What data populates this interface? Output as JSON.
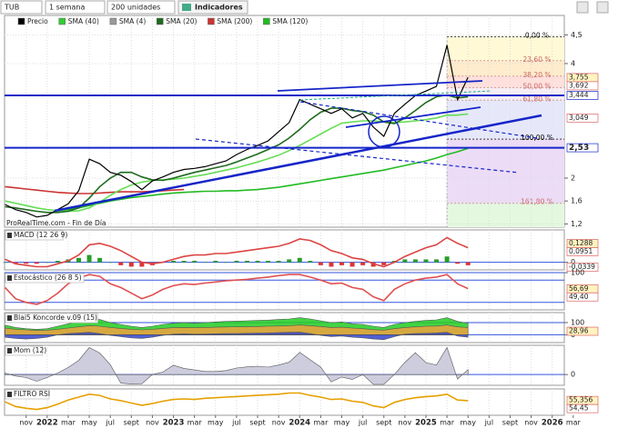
{
  "toolbar": {
    "symbol": "TUB",
    "period": "1 semana",
    "units": "200 unidades",
    "indicators": "Indicadores"
  },
  "chart_data": [
    {
      "type": "line",
      "annotation": "ProRealTime.com - Fin de Día",
      "legend": [
        {
          "name": "Precio",
          "color": "#000000"
        },
        {
          "name": "SMA (40)",
          "color": "#33cc33"
        },
        {
          "name": "SMA (4)",
          "color": "#999999"
        },
        {
          "name": "SMA (20)",
          "color": "#1f6b1f"
        },
        {
          "name": "SMA (200)",
          "color": "#cc3333"
        },
        {
          "name": "SMA (120)",
          "color": "#22bb22"
        }
      ],
      "x": [
        -4,
        -3,
        -2,
        -1,
        0,
        1,
        2,
        3,
        4,
        5,
        6,
        7,
        8,
        9,
        10,
        11,
        12,
        13,
        14,
        15,
        16,
        17,
        18,
        19,
        20,
        21,
        22,
        23,
        24,
        25,
        26,
        27,
        28,
        29,
        30,
        31,
        32,
        33,
        34,
        35,
        36,
        37,
        38,
        39,
        40
      ],
      "xlim": [
        -4.05,
        49.15
      ],
      "xticks": [
        {
          "value": -2,
          "label": "nov"
        },
        {
          "value": 0,
          "label": "2022"
        },
        {
          "value": 2,
          "label": "mar"
        },
        {
          "value": 4,
          "label": "may"
        },
        {
          "value": 6,
          "label": "jul"
        },
        {
          "value": 8,
          "label": "sept"
        },
        {
          "value": 10,
          "label": "nov"
        },
        {
          "value": 12,
          "label": "2023"
        },
        {
          "value": 14,
          "label": "mar"
        },
        {
          "value": 16,
          "label": "may"
        },
        {
          "value": 18,
          "label": "jul"
        },
        {
          "value": 20,
          "label": "sept"
        },
        {
          "value": 22,
          "label": "nov"
        },
        {
          "value": 24,
          "label": "2024"
        },
        {
          "value": 26,
          "label": "mar"
        },
        {
          "value": 28,
          "label": "may"
        },
        {
          "value": 30,
          "label": "jul"
        },
        {
          "value": 32,
          "label": "sept"
        },
        {
          "value": 34,
          "label": "nov"
        },
        {
          "value": 36,
          "label": "2025"
        },
        {
          "value": 38,
          "label": "mar"
        },
        {
          "value": 40,
          "label": "may"
        },
        {
          "value": 42,
          "label": "jul"
        },
        {
          "value": 44,
          "label": "sept"
        },
        {
          "value": 46,
          "label": "nov"
        },
        {
          "value": 48,
          "label": "2026"
        },
        {
          "value": 50,
          "label": "mar"
        }
      ],
      "ylim": [
        1.143,
        4.84
      ],
      "yticks": [
        {
          "value": 4.5,
          "label": "4,5"
        },
        4,
        2,
        {
          "value": 1.6,
          "label": "1,6"
        },
        {
          "value": 1.2,
          "label": "1,2"
        }
      ],
      "grid": true,
      "fibonacci": {
        "from_x": 38,
        "levels": [
          {
            "label": "0,00 %",
            "value": 4.47,
            "color": "#fff9d6"
          },
          {
            "label": "23,60 %",
            "value": 4.05,
            "color": "#ffeccc"
          },
          {
            "label": "38,20 %",
            "value": 3.78,
            "color": "#ffe0dc"
          },
          {
            "label": "50,00 %",
            "value": 3.58,
            "color": "#f6eef4"
          },
          {
            "label": "61,80 %",
            "value": 3.36,
            "color": "#e6e8fa"
          },
          {
            "label": "100,00 %",
            "value": 2.68,
            "color": "#ecdcf6"
          },
          {
            "label": "161,80 %",
            "value": 1.56,
            "color": "#e4f8e0"
          }
        ]
      },
      "levels": [
        {
          "value": 3.755,
          "label": "3,755"
        },
        {
          "value": 3.692,
          "label": "3,692"
        },
        {
          "value": 3.444,
          "label": "3,444",
          "color": "#1525c8"
        },
        {
          "value": 3.049,
          "label": "3,049"
        },
        {
          "value": 2.53,
          "label": "2,53",
          "color": "#1525c8"
        }
      ],
      "series": [
        {
          "color": "#cc3333",
          "values": [
            1.85,
            1.83,
            1.81,
            1.79,
            1.77,
            1.75,
            1.74,
            1.73,
            1.73,
            1.74,
            1.75,
            1.76,
            1.76,
            1.76,
            1.77,
            1.78,
            1.79,
            1.8,
            null,
            null,
            null,
            null,
            null,
            null,
            null,
            null,
            null,
            null,
            null,
            null,
            null,
            null,
            null,
            null,
            null,
            null,
            null,
            null,
            null,
            null,
            null,
            null,
            null,
            null,
            null
          ]
        },
        {
          "color": "#22bb22",
          "values": [
            null,
            null,
            null,
            null,
            null,
            1.42,
            1.45,
            1.48,
            1.52,
            1.56,
            1.6,
            1.63,
            1.66,
            1.68,
            1.7,
            1.72,
            1.74,
            1.75,
            1.76,
            1.77,
            1.77,
            1.78,
            1.78,
            1.79,
            1.8,
            1.82,
            1.84,
            1.87,
            1.9,
            1.93,
            1.96,
            1.99,
            2.02,
            2.05,
            2.08,
            2.11,
            2.14,
            2.18,
            2.22,
            2.26,
            2.3,
            2.35,
            2.41,
            2.46,
            2.52
          ]
        },
        {
          "color": "#66dd55",
          "values": [
            1.6,
            1.56,
            1.52,
            1.48,
            1.45,
            1.43,
            1.42,
            1.43,
            1.48,
            1.58,
            1.7,
            1.8,
            1.88,
            1.93,
            1.96,
            1.97,
            1.98,
            2.0,
            2.03,
            2.06,
            2.1,
            2.14,
            2.18,
            2.23,
            2.28,
            2.34,
            2.4,
            2.48,
            2.57,
            2.67,
            2.77,
            2.87,
            2.96,
            2.98,
            3.0,
            3.0,
            2.98,
            2.97,
            2.98,
            3.0,
            3.02,
            3.05,
            3.1,
            3.1,
            3.12
          ]
        },
        {
          "color": "#1f6b1f",
          "values": [
            1.5,
            1.48,
            1.45,
            1.42,
            1.4,
            1.4,
            1.42,
            1.48,
            1.65,
            1.85,
            2.0,
            2.1,
            2.1,
            2.02,
            1.97,
            1.96,
            2.0,
            2.05,
            2.1,
            2.14,
            2.18,
            2.22,
            2.28,
            2.35,
            2.42,
            2.5,
            2.58,
            2.7,
            2.85,
            3.02,
            3.15,
            3.22,
            3.22,
            3.18,
            3.16,
            3.1,
            2.98,
            2.95,
            3.05,
            3.18,
            3.32,
            3.42,
            3.45,
            3.4,
            3.42
          ]
        },
        {
          "color": "#000000",
          "values": [
            1.54,
            1.45,
            1.4,
            1.32,
            1.35,
            1.45,
            1.55,
            1.78,
            2.33,
            2.25,
            2.1,
            2.05,
            1.94,
            1.8,
            1.95,
            2.02,
            2.1,
            2.15,
            2.17,
            2.2,
            2.25,
            2.3,
            2.41,
            2.5,
            2.57,
            2.65,
            2.81,
            2.97,
            3.37,
            3.29,
            3.21,
            3.13,
            3.21,
            3.05,
            3.13,
            2.89,
            2.73,
            3.13,
            3.29,
            3.44,
            3.52,
            3.6,
            4.32,
            3.37,
            3.76
          ]
        }
      ]
    },
    {
      "type": "line",
      "title": "MACD (12 26 9)",
      "ylim": [
        -0.052,
        0.222
      ],
      "yticks": [
        0
      ],
      "levels": [
        {
          "value": 0.1288,
          "label": "0,1288"
        },
        {
          "value": 0.0951,
          "label": "0,0951"
        },
        {
          "value": -0.0339,
          "label": "-0,0339"
        }
      ],
      "series": [
        {
          "kind": "bar",
          "color": "#2a9d2a",
          "negative_color": "#dd3333",
          "values": [
            0.0,
            -0.01,
            -0.01,
            -0.01,
            0.0,
            0.01,
            0.02,
            0.03,
            0.05,
            0.03,
            0.0,
            -0.02,
            -0.03,
            -0.03,
            -0.02,
            0.0,
            0.01,
            0.01,
            0.01,
            0.0,
            0.01,
            0.0,
            0.01,
            0.01,
            0.01,
            0.01,
            0.01,
            0.02,
            0.03,
            0.01,
            -0.02,
            -0.03,
            -0.02,
            -0.03,
            -0.02,
            -0.03,
            -0.02,
            0.01,
            0.02,
            0.02,
            0.02,
            0.02,
            0.04,
            -0.01,
            -0.02
          ]
        },
        {
          "color": "#dd4444",
          "values": [
            0.02,
            -0.01,
            -0.02,
            -0.03,
            -0.03,
            -0.01,
            0.01,
            0.05,
            0.12,
            0.13,
            0.11,
            0.08,
            0.04,
            0.0,
            -0.01,
            0.0,
            0.02,
            0.04,
            0.05,
            0.05,
            0.06,
            0.06,
            0.07,
            0.08,
            0.09,
            0.1,
            0.11,
            0.13,
            0.16,
            0.15,
            0.12,
            0.08,
            0.06,
            0.03,
            0.02,
            -0.01,
            -0.03,
            0.0,
            0.04,
            0.07,
            0.1,
            0.12,
            0.17,
            0.13,
            0.1
          ]
        }
      ]
    },
    {
      "type": "line",
      "title": "Estocástico (26 8 5)",
      "ylim": [
        0,
        100
      ],
      "yticks": [
        100
      ],
      "hlines": [
        80,
        20
      ],
      "levels": [
        {
          "value": 56.69,
          "label": "56,69"
        },
        {
          "value": 49.4,
          "label": "49,40"
        }
      ],
      "series": [
        {
          "color": "#e05050",
          "values": [
            60,
            30,
            20,
            15,
            25,
            45,
            70,
            85,
            95,
            90,
            70,
            60,
            45,
            30,
            40,
            55,
            65,
            70,
            68,
            72,
            75,
            78,
            80,
            82,
            85,
            88,
            92,
            95,
            95,
            88,
            80,
            70,
            72,
            60,
            55,
            35,
            25,
            55,
            70,
            80,
            85,
            88,
            95,
            70,
            57
          ]
        }
      ]
    },
    {
      "type": "area",
      "title": "Blai5 Koncorde v.09 (15)",
      "ylim": [
        -64,
        182
      ],
      "yticks": [
        100,
        0
      ],
      "levels": [
        {
          "value": 28.96,
          "label": "28,96"
        }
      ],
      "series": [
        {
          "color": "#22cc22",
          "values": [
            80,
            60,
            50,
            45,
            50,
            70,
            90,
            110,
            130,
            125,
            100,
            85,
            70,
            60,
            70,
            85,
            95,
            100,
            95,
            100,
            105,
            110,
            112,
            115,
            118,
            120,
            125,
            130,
            140,
            130,
            115,
            100,
            105,
            90,
            85,
            70,
            60,
            85,
            100,
            110,
            118,
            122,
            140,
            110,
            95
          ]
        },
        {
          "color": "#f0a040",
          "values": [
            55,
            45,
            40,
            35,
            38,
            45,
            55,
            65,
            75,
            70,
            60,
            52,
            45,
            40,
            45,
            52,
            58,
            60,
            58,
            60,
            62,
            64,
            65,
            66,
            68,
            70,
            72,
            75,
            80,
            75,
            68,
            60,
            62,
            55,
            50,
            42,
            38,
            50,
            60,
            65,
            70,
            72,
            80,
            65,
            58
          ]
        },
        {
          "color": "#3344cc",
          "values": [
            -20,
            -30,
            -35,
            -30,
            -20,
            0,
            10,
            15,
            20,
            10,
            -5,
            -15,
            -25,
            -30,
            -20,
            -5,
            5,
            8,
            5,
            6,
            8,
            10,
            10,
            12,
            14,
            15,
            18,
            20,
            22,
            10,
            -5,
            -15,
            -10,
            -20,
            -25,
            -35,
            -40,
            -15,
            5,
            10,
            12,
            15,
            20,
            -10,
            -20
          ]
        }
      ]
    },
    {
      "type": "area",
      "title": "Mom (12)",
      "ylim": [
        -0.35,
        0.95
      ],
      "yticks": [
        0
      ],
      "series": [
        {
          "color": "#c4c4d8",
          "values": [
            0.05,
            -0.05,
            -0.1,
            -0.22,
            -0.1,
            0.05,
            0.23,
            0.46,
            0.88,
            0.7,
            0.32,
            -0.28,
            -0.31,
            -0.3,
            0.0,
            0.08,
            0.3,
            0.2,
            0.15,
            0.1,
            0.1,
            0.13,
            0.21,
            0.25,
            0.27,
            0.24,
            0.31,
            0.4,
            0.72,
            0.48,
            0.24,
            -0.24,
            -0.08,
            -0.16,
            0.0,
            -0.32,
            -0.32,
            0.0,
            0.4,
            0.71,
            0.39,
            0.31,
            0.88,
            -0.15,
            0.16
          ]
        }
      ]
    },
    {
      "type": "line",
      "title": "FILTRO RSI",
      "ylim": [
        30,
        75
      ],
      "levels": [
        {
          "value": 55.356,
          "label": "55,356"
        },
        {
          "value": 54.45,
          "label": "54,45"
        }
      ],
      "series": [
        {
          "color": "#e6a000",
          "values": [
            53,
            45,
            42,
            40,
            43,
            49,
            56,
            61,
            66,
            64,
            58,
            55,
            51,
            47,
            50,
            54,
            57,
            58,
            57,
            59,
            60,
            61,
            62,
            63,
            64,
            65,
            66,
            68,
            68,
            64,
            61,
            57,
            58,
            54,
            52,
            46,
            43,
            52,
            57,
            60,
            62,
            63,
            66,
            56,
            55
          ]
        }
      ]
    }
  ]
}
